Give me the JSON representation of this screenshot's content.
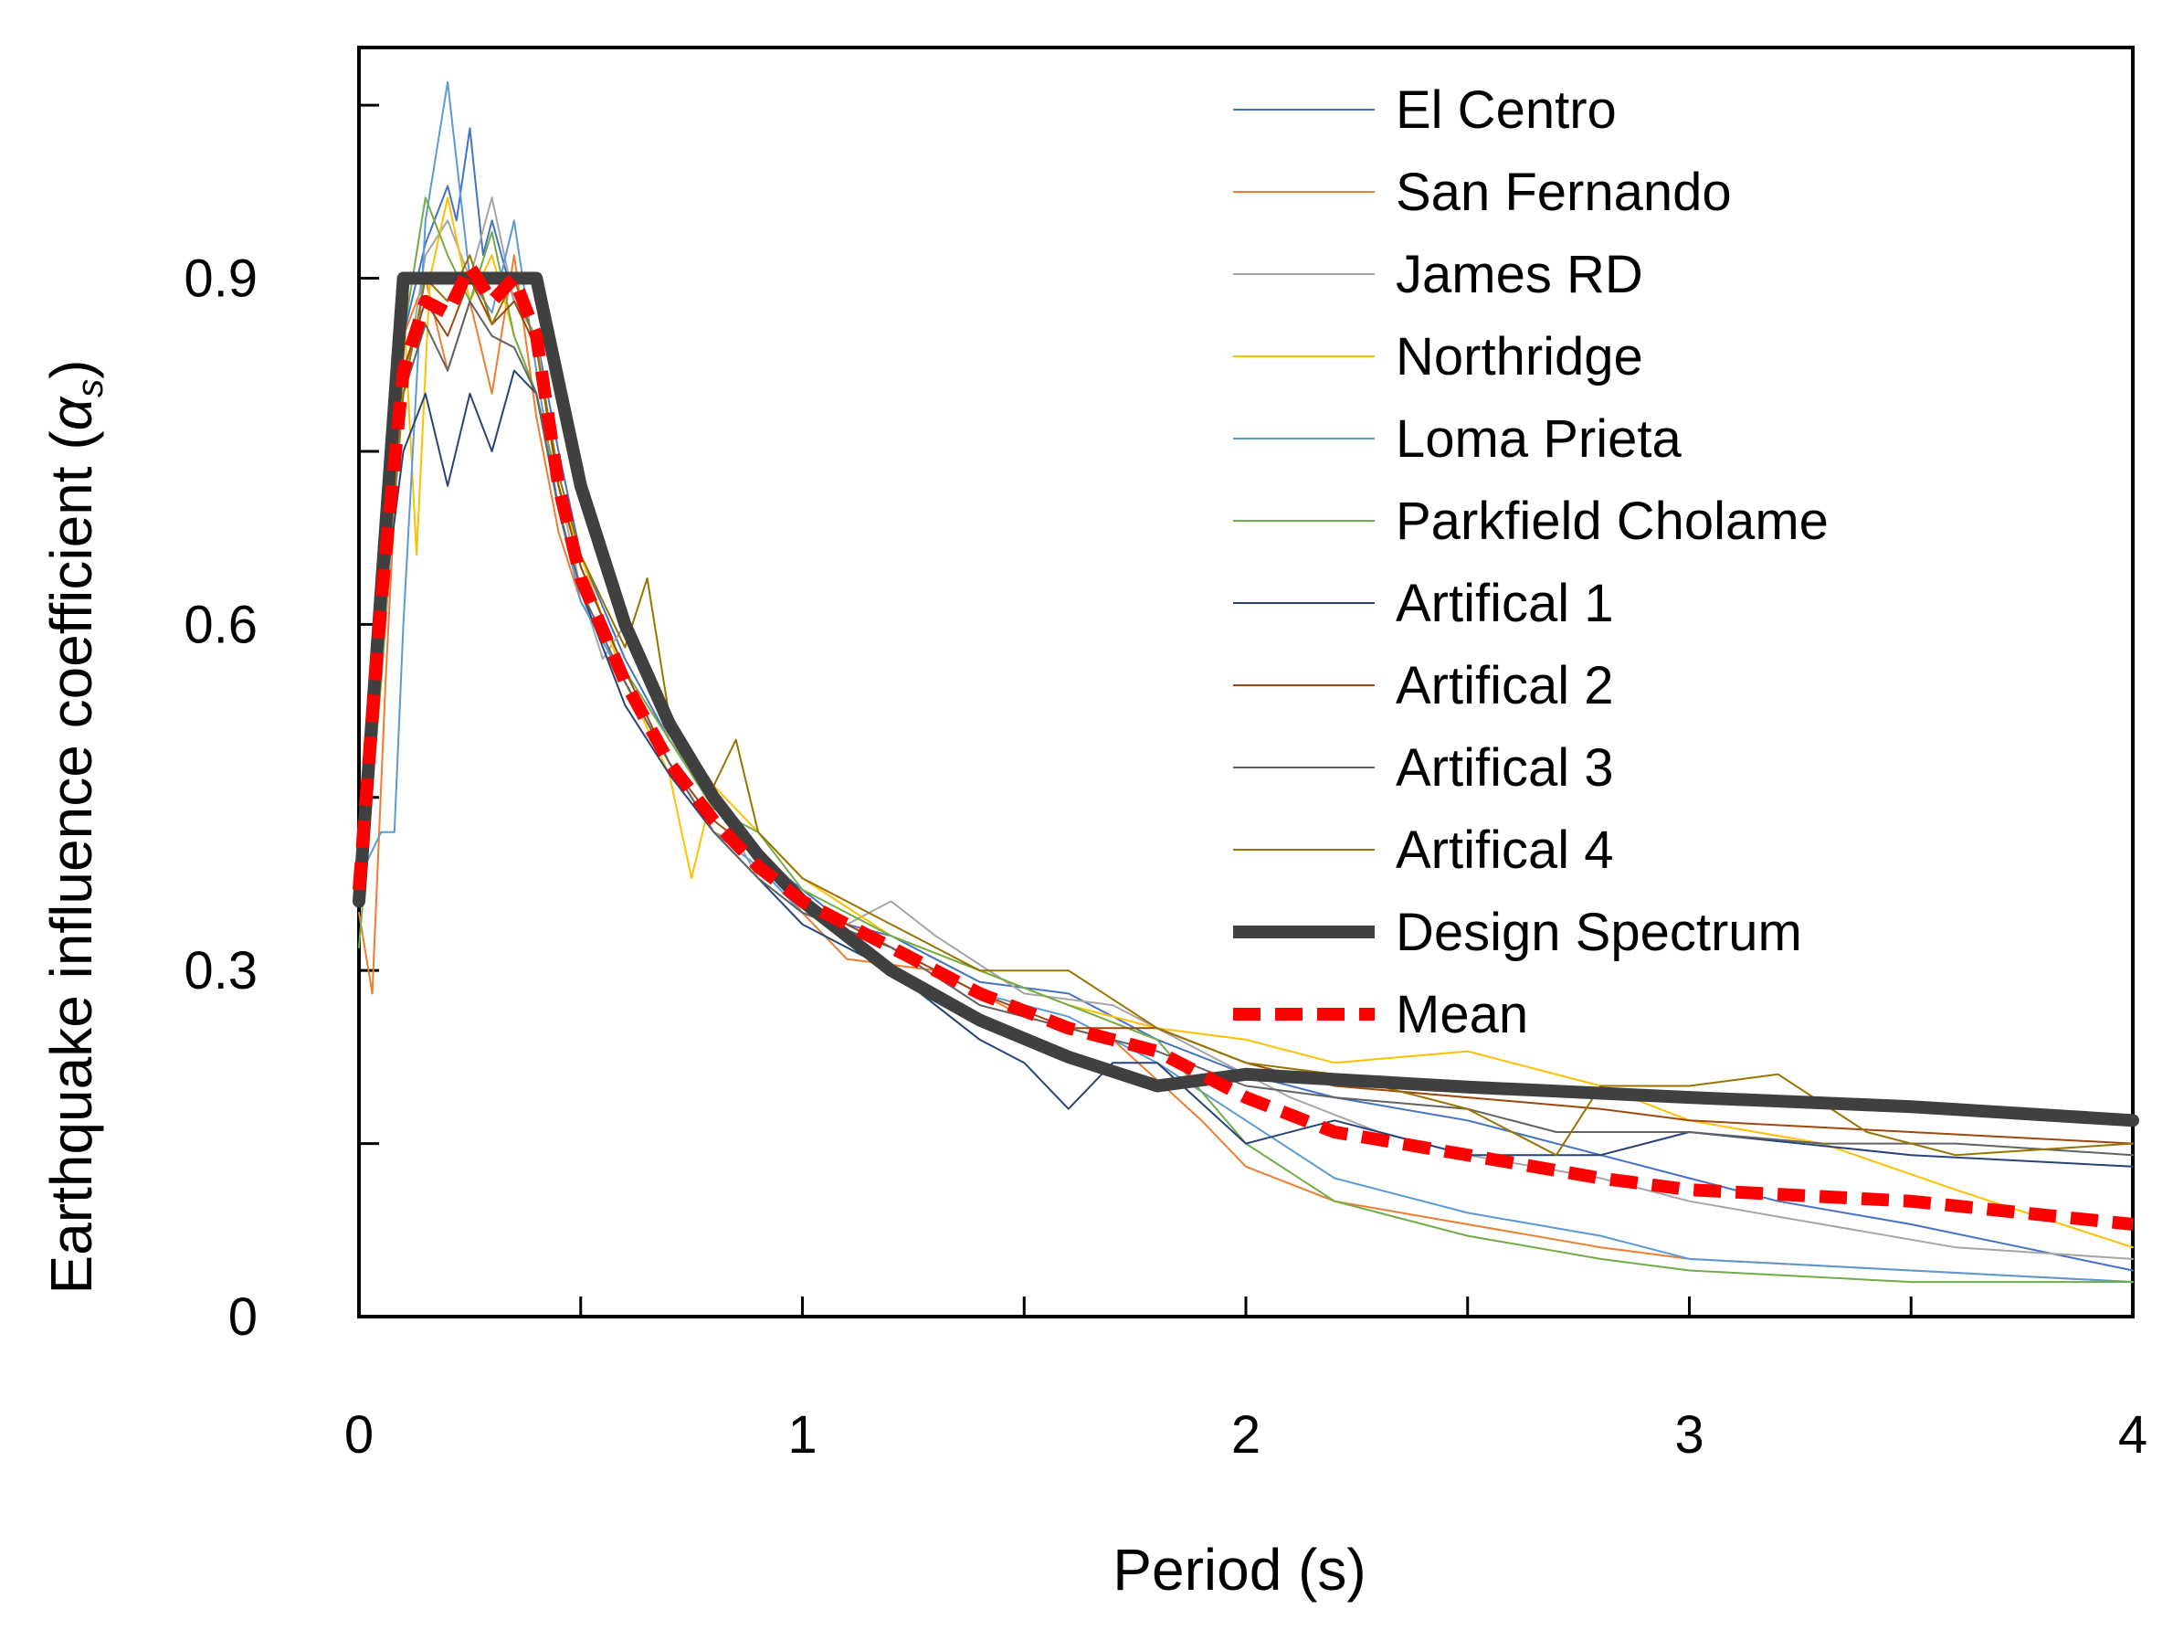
{
  "chart_data": {
    "type": "line",
    "xlabel": "Period (s)",
    "ylabel": "Earthquake influence coefficient (",
    "ylabel_symbol": "α",
    "ylabel_subscript": "s",
    "ylabel_close": ")",
    "xlim": [
      0,
      4
    ],
    "ylim": [
      0,
      1.1
    ],
    "x_ticks": [
      0,
      1,
      2,
      3,
      4
    ],
    "x_tick_labels": [
      "0",
      "1",
      "2",
      "3",
      "4"
    ],
    "x_minor_ticks": [
      0.5,
      1.5,
      2.5,
      3.5
    ],
    "y_ticks": [
      0,
      0.3,
      0.6,
      0.9
    ],
    "y_tick_labels": [
      "0",
      "0.3",
      "0.6",
      "0.9"
    ],
    "y_minor_ticks": [
      0.15,
      0.45,
      0.75,
      1.05
    ],
    "grid": false,
    "legend_position": "top-right",
    "series": [
      {
        "name": "El Centro",
        "color": "#4472C4",
        "width": 2,
        "dash": "",
        "x": [
          0,
          0.05,
          0.1,
          0.15,
          0.2,
          0.22,
          0.25,
          0.28,
          0.3,
          0.35,
          0.4,
          0.45,
          0.5,
          0.6,
          0.7,
          0.8,
          0.9,
          1.0,
          1.1,
          1.2,
          1.4,
          1.6,
          1.8,
          2.0,
          2.2,
          2.5,
          2.8,
          3.0,
          3.2,
          3.5,
          4.0
        ],
        "y": [
          0.4,
          0.6,
          0.85,
          0.93,
          0.98,
          0.95,
          1.03,
          0.92,
          0.95,
          0.88,
          0.85,
          0.75,
          0.66,
          0.57,
          0.5,
          0.45,
          0.4,
          0.37,
          0.34,
          0.33,
          0.29,
          0.28,
          0.24,
          0.21,
          0.19,
          0.17,
          0.14,
          0.12,
          0.1,
          0.08,
          0.04
        ]
      },
      {
        "name": "San Fernando",
        "color": "#ED7D31",
        "width": 2,
        "dash": "",
        "x": [
          0,
          0.03,
          0.06,
          0.1,
          0.15,
          0.2,
          0.25,
          0.3,
          0.35,
          0.4,
          0.45,
          0.5,
          0.6,
          0.7,
          0.8,
          0.9,
          1.0,
          1.1,
          1.3,
          1.5,
          1.7,
          1.9,
          2.0,
          2.2,
          2.5,
          2.8,
          3.0,
          3.5,
          4.0
        ],
        "y": [
          0.35,
          0.28,
          0.55,
          0.85,
          0.9,
          0.82,
          0.88,
          0.8,
          0.92,
          0.78,
          0.68,
          0.62,
          0.55,
          0.48,
          0.42,
          0.4,
          0.35,
          0.31,
          0.3,
          0.26,
          0.24,
          0.17,
          0.13,
          0.1,
          0.08,
          0.06,
          0.05,
          0.04,
          0.03
        ]
      },
      {
        "name": "James RD",
        "color": "#A5A5A5",
        "width": 2,
        "dash": "",
        "x": [
          0,
          0.05,
          0.1,
          0.15,
          0.2,
          0.25,
          0.3,
          0.35,
          0.4,
          0.45,
          0.5,
          0.55,
          0.6,
          0.7,
          0.8,
          0.9,
          1.0,
          1.1,
          1.2,
          1.3,
          1.5,
          1.7,
          1.9,
          2.1,
          2.3,
          2.5,
          2.8,
          3.0,
          3.3,
          3.6,
          4.0
        ],
        "y": [
          0.42,
          0.55,
          0.8,
          0.92,
          0.95,
          0.9,
          0.97,
          0.88,
          0.85,
          0.72,
          0.63,
          0.57,
          0.6,
          0.5,
          0.45,
          0.38,
          0.35,
          0.34,
          0.36,
          0.33,
          0.28,
          0.27,
          0.23,
          0.19,
          0.16,
          0.14,
          0.12,
          0.1,
          0.08,
          0.06,
          0.05
        ]
      },
      {
        "name": "Northridge",
        "color": "#FFC000",
        "width": 2,
        "dash": "",
        "x": [
          0,
          0.05,
          0.1,
          0.13,
          0.16,
          0.2,
          0.25,
          0.3,
          0.35,
          0.4,
          0.45,
          0.5,
          0.6,
          0.7,
          0.75,
          0.8,
          0.9,
          1.0,
          1.2,
          1.4,
          1.6,
          1.8,
          2.0,
          2.2,
          2.5,
          2.8,
          3.0,
          3.3,
          3.6,
          4.0
        ],
        "y": [
          0.4,
          0.6,
          0.88,
          0.66,
          0.9,
          0.97,
          0.88,
          0.92,
          0.85,
          0.8,
          0.72,
          0.66,
          0.55,
          0.47,
          0.38,
          0.46,
          0.42,
          0.38,
          0.33,
          0.3,
          0.27,
          0.25,
          0.24,
          0.22,
          0.23,
          0.2,
          0.17,
          0.15,
          0.11,
          0.06
        ]
      },
      {
        "name": "Loma Prieta",
        "color": "#5B9BD5",
        "width": 2,
        "dash": "",
        "x": [
          0,
          0.05,
          0.08,
          0.1,
          0.15,
          0.2,
          0.25,
          0.3,
          0.35,
          0.4,
          0.45,
          0.5,
          0.6,
          0.7,
          0.8,
          0.9,
          1.0,
          1.2,
          1.4,
          1.6,
          1.8,
          2.0,
          2.2,
          2.5,
          2.8,
          3.0,
          3.5,
          4.0
        ],
        "y": [
          0.38,
          0.42,
          0.42,
          0.6,
          0.95,
          1.07,
          0.9,
          0.87,
          0.95,
          0.82,
          0.7,
          0.62,
          0.55,
          0.48,
          0.42,
          0.39,
          0.35,
          0.32,
          0.28,
          0.26,
          0.22,
          0.17,
          0.12,
          0.09,
          0.07,
          0.05,
          0.04,
          0.03
        ]
      },
      {
        "name": "Parkfield Cholame",
        "color": "#70AD47",
        "width": 2,
        "dash": "",
        "x": [
          0,
          0.05,
          0.1,
          0.15,
          0.2,
          0.25,
          0.3,
          0.35,
          0.4,
          0.45,
          0.5,
          0.6,
          0.7,
          0.8,
          0.9,
          1.0,
          1.2,
          1.4,
          1.6,
          1.8,
          2.0,
          2.2,
          2.5,
          2.8,
          3.0,
          3.5,
          4.0
        ],
        "y": [
          0.32,
          0.55,
          0.85,
          0.97,
          0.92,
          0.88,
          0.94,
          0.85,
          0.8,
          0.72,
          0.65,
          0.56,
          0.5,
          0.44,
          0.42,
          0.37,
          0.33,
          0.3,
          0.27,
          0.24,
          0.15,
          0.1,
          0.07,
          0.05,
          0.04,
          0.03,
          0.03
        ]
      },
      {
        "name": "Artifical 1",
        "color": "#264478",
        "width": 2,
        "dash": "",
        "x": [
          0,
          0.05,
          0.1,
          0.15,
          0.2,
          0.25,
          0.3,
          0.35,
          0.4,
          0.45,
          0.5,
          0.6,
          0.7,
          0.8,
          0.9,
          1.0,
          1.2,
          1.4,
          1.5,
          1.6,
          1.7,
          1.8,
          2.0,
          2.2,
          2.5,
          2.8,
          3.0,
          3.5,
          4.0
        ],
        "y": [
          0.4,
          0.6,
          0.75,
          0.8,
          0.72,
          0.8,
          0.75,
          0.82,
          0.8,
          0.7,
          0.63,
          0.53,
          0.47,
          0.42,
          0.38,
          0.34,
          0.3,
          0.24,
          0.22,
          0.18,
          0.22,
          0.22,
          0.15,
          0.17,
          0.14,
          0.14,
          0.16,
          0.14,
          0.13
        ]
      },
      {
        "name": "Artifical 2",
        "color": "#9E480E",
        "width": 2,
        "dash": "",
        "x": [
          0,
          0.05,
          0.1,
          0.15,
          0.2,
          0.25,
          0.3,
          0.35,
          0.4,
          0.45,
          0.5,
          0.6,
          0.7,
          0.8,
          0.9,
          1.0,
          1.2,
          1.4,
          1.6,
          1.8,
          2.0,
          2.2,
          2.5,
          2.8,
          3.0,
          3.5,
          4.0
        ],
        "y": [
          0.4,
          0.6,
          0.82,
          0.88,
          0.85,
          0.9,
          0.86,
          0.88,
          0.84,
          0.72,
          0.65,
          0.56,
          0.48,
          0.43,
          0.4,
          0.36,
          0.32,
          0.28,
          0.25,
          0.25,
          0.22,
          0.2,
          0.19,
          0.18,
          0.17,
          0.16,
          0.15
        ]
      },
      {
        "name": "Artifical 3",
        "color": "#636363",
        "width": 2,
        "dash": "",
        "x": [
          0,
          0.05,
          0.1,
          0.15,
          0.2,
          0.25,
          0.3,
          0.35,
          0.4,
          0.45,
          0.5,
          0.6,
          0.7,
          0.8,
          0.9,
          1.0,
          1.2,
          1.4,
          1.6,
          1.8,
          2.0,
          2.2,
          2.5,
          2.7,
          3.0,
          3.3,
          3.6,
          4.0
        ],
        "y": [
          0.4,
          0.58,
          0.8,
          0.86,
          0.82,
          0.88,
          0.85,
          0.84,
          0.8,
          0.7,
          0.63,
          0.55,
          0.48,
          0.42,
          0.38,
          0.35,
          0.32,
          0.27,
          0.25,
          0.23,
          0.2,
          0.19,
          0.18,
          0.16,
          0.16,
          0.15,
          0.15,
          0.14
        ]
      },
      {
        "name": "Artifical 4",
        "color": "#997300",
        "width": 2,
        "dash": "",
        "x": [
          0,
          0.05,
          0.1,
          0.15,
          0.2,
          0.25,
          0.3,
          0.35,
          0.4,
          0.45,
          0.5,
          0.6,
          0.65,
          0.7,
          0.8,
          0.85,
          0.9,
          1.0,
          1.2,
          1.4,
          1.6,
          1.8,
          2.0,
          2.2,
          2.5,
          2.7,
          2.8,
          3.0,
          3.2,
          3.4,
          3.6,
          4.0
        ],
        "y": [
          0.4,
          0.58,
          0.8,
          0.9,
          0.88,
          0.92,
          0.86,
          0.9,
          0.84,
          0.73,
          0.66,
          0.58,
          0.64,
          0.52,
          0.46,
          0.5,
          0.42,
          0.38,
          0.34,
          0.3,
          0.3,
          0.25,
          0.22,
          0.21,
          0.18,
          0.14,
          0.2,
          0.2,
          0.21,
          0.16,
          0.14,
          0.15
        ]
      },
      {
        "name": "Design Spectrum",
        "color": "#404040",
        "width": 14,
        "dash": "",
        "x": [
          0,
          0.1,
          0.4,
          0.5,
          0.6,
          0.7,
          0.8,
          0.9,
          1.0,
          1.2,
          1.4,
          1.6,
          1.8,
          2.0,
          2.5,
          3.0,
          3.5,
          4.0
        ],
        "y": [
          0.36,
          0.9,
          0.9,
          0.72,
          0.6,
          0.514,
          0.45,
          0.4,
          0.36,
          0.3,
          0.257,
          0.225,
          0.2,
          0.21,
          0.199,
          0.19,
          0.182,
          0.17
        ]
      },
      {
        "name": "Mean",
        "color": "#FF0000",
        "width": 14,
        "dash": "30,16",
        "x": [
          0,
          0.05,
          0.1,
          0.15,
          0.2,
          0.25,
          0.3,
          0.35,
          0.4,
          0.45,
          0.5,
          0.6,
          0.7,
          0.8,
          0.9,
          1.0,
          1.2,
          1.4,
          1.6,
          1.8,
          2.0,
          2.2,
          2.5,
          2.8,
          3.0,
          3.5,
          4.0
        ],
        "y": [
          0.37,
          0.62,
          0.82,
          0.88,
          0.87,
          0.91,
          0.88,
          0.9,
          0.85,
          0.72,
          0.64,
          0.55,
          0.48,
          0.43,
          0.39,
          0.36,
          0.32,
          0.28,
          0.25,
          0.23,
          0.19,
          0.16,
          0.14,
          0.12,
          0.11,
          0.1,
          0.08
        ]
      }
    ]
  }
}
